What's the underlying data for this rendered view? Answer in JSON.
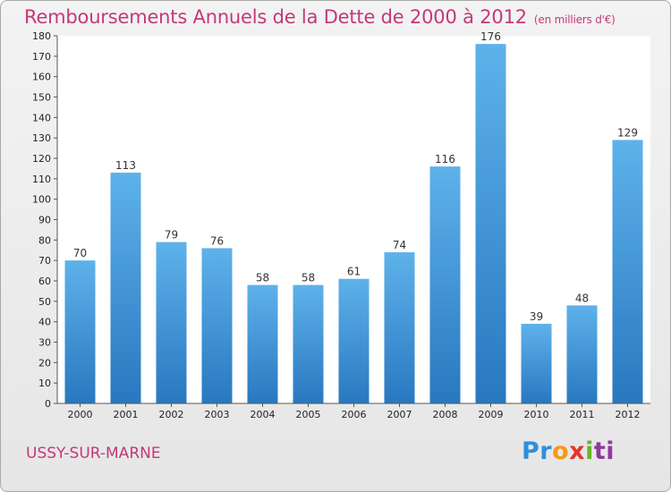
{
  "title": "Remboursements Annuels de la Dette de 2000 à 2012",
  "unit": "(en milliers d'€)",
  "commune": "USSY-SUR-MARNE",
  "logo": {
    "parts": [
      "Pr",
      "o",
      "x",
      "i",
      "ti"
    ]
  },
  "colors": {
    "bar_light": "#5aaee8",
    "bar_dark": "#2a7ec4",
    "title": "#c4387a"
  },
  "chart_data": {
    "type": "bar",
    "title": "Remboursements Annuels de la Dette de 2000 à 2012",
    "xlabel": "",
    "ylabel": "",
    "categories": [
      "2000",
      "2001",
      "2002",
      "2003",
      "2004",
      "2005",
      "2006",
      "2007",
      "2008",
      "2009",
      "2010",
      "2011",
      "2012"
    ],
    "values": [
      70,
      113,
      79,
      76,
      58,
      58,
      61,
      74,
      116,
      176,
      39,
      48,
      129
    ],
    "ylim": [
      0,
      180
    ],
    "yticks": [
      0,
      10,
      20,
      30,
      40,
      50,
      60,
      70,
      80,
      90,
      100,
      110,
      120,
      130,
      140,
      150,
      160,
      170,
      180
    ],
    "grid": false,
    "data_labels": true
  }
}
